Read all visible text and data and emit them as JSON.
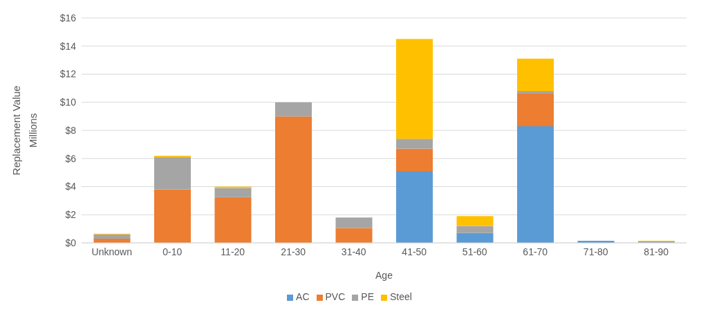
{
  "chart_data": {
    "type": "bar",
    "stacked": true,
    "xlabel": "Age",
    "ylabel": "Replacement Value\nMillions",
    "categories": [
      "Unknown",
      "0-10",
      "11-20",
      "21-30",
      "31-40",
      "41-50",
      "51-60",
      "61-70",
      "71-80",
      "81-90"
    ],
    "series": [
      {
        "name": "AC",
        "color": "#5b9bd5",
        "values": [
          0,
          0,
          0,
          0,
          0,
          5.1,
          0.7,
          8.3,
          0.15,
          0
        ]
      },
      {
        "name": "PVC",
        "color": "#ed7d31",
        "values": [
          0.3,
          3.8,
          3.25,
          9.0,
          1.05,
          1.6,
          0,
          2.3,
          0,
          null
        ]
      },
      {
        "name": "PE",
        "color": "#a5a5a5",
        "values": [
          0.3,
          2.3,
          0.65,
          1.0,
          0.75,
          0.7,
          0.5,
          0.2,
          0,
          0.1
        ]
      },
      {
        "name": "Steel",
        "color": "#ffc000",
        "values": [
          0.05,
          0.1,
          0.1,
          0,
          0,
          7.1,
          0.7,
          2.3,
          0,
          0.05
        ]
      }
    ],
    "ylim": [
      0,
      16
    ],
    "yticks": [
      {
        "value": 0,
        "label": "$0"
      },
      {
        "value": 2,
        "label": "$2"
      },
      {
        "value": 4,
        "label": "$4"
      },
      {
        "value": 6,
        "label": "$6"
      },
      {
        "value": 8,
        "label": "$8"
      },
      {
        "value": 10,
        "label": "$10"
      },
      {
        "value": 12,
        "label": "$12"
      },
      {
        "value": 14,
        "label": "$14"
      },
      {
        "value": 16,
        "label": "$16"
      }
    ],
    "grid": "y",
    "legend": "bottom"
  }
}
